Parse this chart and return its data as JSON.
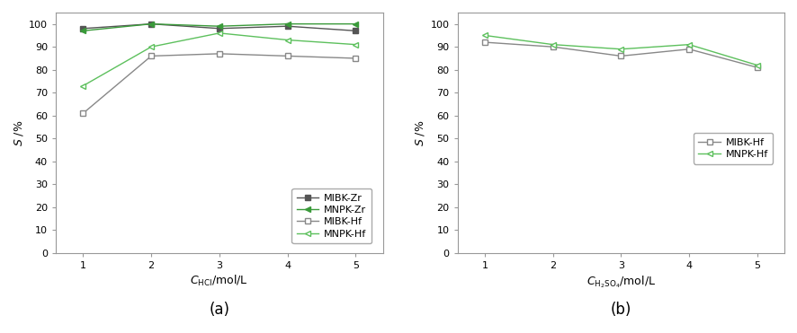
{
  "panel_a": {
    "x": [
      1,
      2,
      3,
      4,
      5
    ],
    "MIBK_Zr": [
      98,
      100,
      98,
      99,
      97
    ],
    "MNPK_Zr": [
      97,
      100,
      99,
      100,
      100
    ],
    "MIBK_Hf": [
      61,
      86,
      87,
      86,
      85
    ],
    "MNPK_Hf": [
      73,
      90,
      96,
      93,
      91
    ],
    "xlabel": "$C_{\\mathrm{HCl}}$/mol/L",
    "ylabel": "$S$ /%",
    "label_a": "(a)",
    "ylim": [
      0,
      105
    ],
    "yticks": [
      0,
      10,
      20,
      30,
      40,
      50,
      60,
      70,
      80,
      90,
      100
    ]
  },
  "panel_b": {
    "x": [
      1,
      2,
      3,
      4,
      5
    ],
    "MIBK_Hf": [
      92,
      90,
      86,
      89,
      81
    ],
    "MNPK_Hf": [
      95,
      91,
      89,
      91,
      82
    ],
    "xlabel": "$C_{\\mathrm{H_{2}SO_{4}}}$/mol/L",
    "ylabel": "$S$ /%",
    "label_b": "(b)",
    "ylim": [
      0,
      105
    ],
    "yticks": [
      0,
      10,
      20,
      30,
      40,
      50,
      60,
      70,
      80,
      90,
      100
    ]
  },
  "color_dark_gray": "#555555",
  "color_dark_green": "#3a9a3a",
  "color_mid_gray": "#888888",
  "color_light_green": "#5dc05d",
  "bg_color": "#ffffff",
  "spine_color": "#999999",
  "linewidth": 1.0,
  "markersize": 5
}
